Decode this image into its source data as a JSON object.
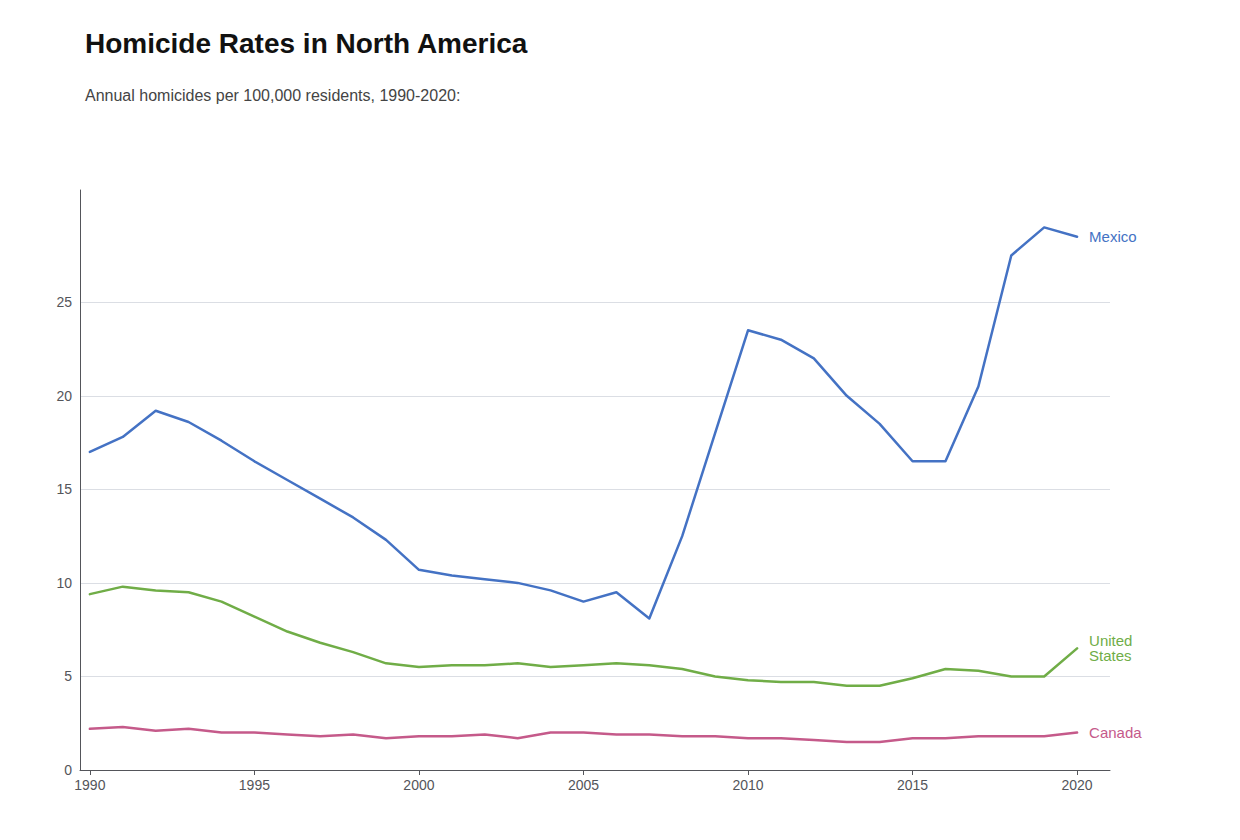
{
  "chart_data": {
    "type": "line",
    "title": "Homicide Rates in North America",
    "subtitle": "Annual homicides per 100,000 residents, 1990-2020:",
    "x": [
      1990,
      1991,
      1992,
      1993,
      1994,
      1995,
      1996,
      1997,
      1998,
      1999,
      2000,
      2001,
      2002,
      2003,
      2004,
      2005,
      2006,
      2007,
      2008,
      2009,
      2010,
      2011,
      2012,
      2013,
      2014,
      2015,
      2016,
      2017,
      2018,
      2019,
      2020
    ],
    "series": [
      {
        "name": "Mexico",
        "color": "#4472C4",
        "values": [
          17.0,
          17.8,
          19.2,
          18.6,
          17.6,
          16.5,
          15.5,
          14.5,
          13.5,
          12.3,
          10.7,
          10.4,
          10.2,
          10.0,
          9.6,
          9.0,
          9.5,
          8.1,
          12.5,
          18.0,
          23.5,
          23.0,
          22.0,
          20.0,
          18.5,
          16.5,
          16.5,
          20.5,
          27.5,
          29.0,
          28.5
        ]
      },
      {
        "name": "United\nStates",
        "color": "#70AD47",
        "values": [
          9.4,
          9.8,
          9.6,
          9.5,
          9.0,
          8.2,
          7.4,
          6.8,
          6.3,
          5.7,
          5.5,
          5.6,
          5.6,
          5.7,
          5.5,
          5.6,
          5.7,
          5.6,
          5.4,
          5.0,
          4.8,
          4.7,
          4.7,
          4.5,
          4.5,
          4.9,
          5.4,
          5.3,
          5.0,
          5.0,
          6.5
        ]
      },
      {
        "name": "Canada",
        "color": "#C55A8A",
        "values": [
          2.2,
          2.3,
          2.1,
          2.2,
          2.0,
          2.0,
          1.9,
          1.8,
          1.9,
          1.7,
          1.8,
          1.8,
          1.9,
          1.7,
          2.0,
          2.0,
          1.9,
          1.9,
          1.8,
          1.8,
          1.7,
          1.7,
          1.6,
          1.5,
          1.5,
          1.7,
          1.7,
          1.8,
          1.8,
          1.8,
          2.0
        ]
      }
    ],
    "xlim": [
      1989.7,
      2021.0
    ],
    "xticks": [
      1990,
      1995,
      2000,
      2005,
      2010,
      2015,
      2020
    ],
    "ylim": [
      0,
      31
    ],
    "yticks": [
      0,
      5,
      10,
      15,
      20,
      25
    ],
    "grid": true
  }
}
